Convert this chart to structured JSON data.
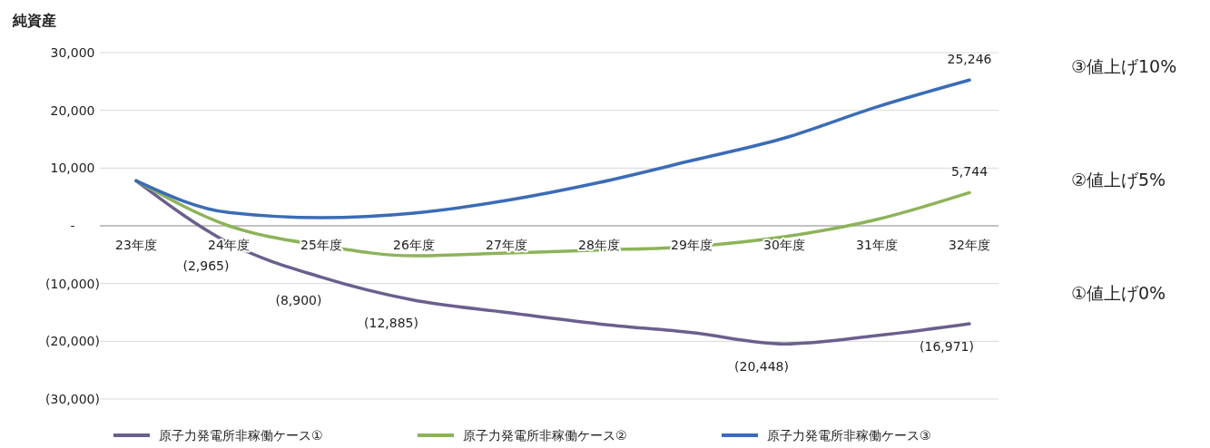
{
  "chart_data": {
    "type": "line",
    "ylabel": "純資産",
    "categories": [
      "23年度",
      "24年度",
      "25年度",
      "26年度",
      "27年度",
      "28年度",
      "29年度",
      "30年度",
      "31年度",
      "32年度"
    ],
    "series": [
      {
        "name": "原子力発電所非稼働ケース①",
        "color": "#6b5f8e",
        "values": [
          7800,
          -2965,
          -8900,
          -12885,
          -15000,
          -17000,
          -18500,
          -20448,
          -19000,
          -16971
        ],
        "value_labels": [
          null,
          "(2,965)",
          "(8,900)",
          "(12,885)",
          null,
          null,
          null,
          "(20,448)",
          null,
          "(16,971)"
        ]
      },
      {
        "name": "原子力発電所非稼働ケース②",
        "color": "#8db35a",
        "values": [
          7800,
          0,
          -3400,
          -5200,
          -4700,
          -4200,
          -3600,
          -1900,
          1100,
          5744
        ],
        "value_labels": [
          null,
          null,
          null,
          null,
          null,
          null,
          null,
          null,
          null,
          "5,744"
        ]
      },
      {
        "name": "原子力発電所非稼働ケース③",
        "color": "#3b6cb6",
        "values": [
          7800,
          2300,
          1400,
          2200,
          4400,
          7500,
          11300,
          15200,
          20600,
          25246
        ],
        "value_labels": [
          null,
          null,
          null,
          null,
          null,
          null,
          null,
          null,
          null,
          "25,246"
        ]
      }
    ],
    "ylim": [
      -30000,
      30000
    ],
    "yticks": [
      {
        "value": -30000,
        "label": "(30,000)"
      },
      {
        "value": -20000,
        "label": "(20,000)"
      },
      {
        "value": -10000,
        "label": "(10,000)"
      },
      {
        "value": 0,
        "label": "-"
      },
      {
        "value": 10000,
        "label": "10,000"
      },
      {
        "value": 20000,
        "label": "20,000"
      },
      {
        "value": 30000,
        "label": "30,000"
      }
    ],
    "grid": "y",
    "legend": "bottom",
    "marker": "none",
    "line_style": "solid",
    "annotations": [
      "③値上げ10%",
      "②値上げ5%",
      "①値上げ0%"
    ]
  }
}
